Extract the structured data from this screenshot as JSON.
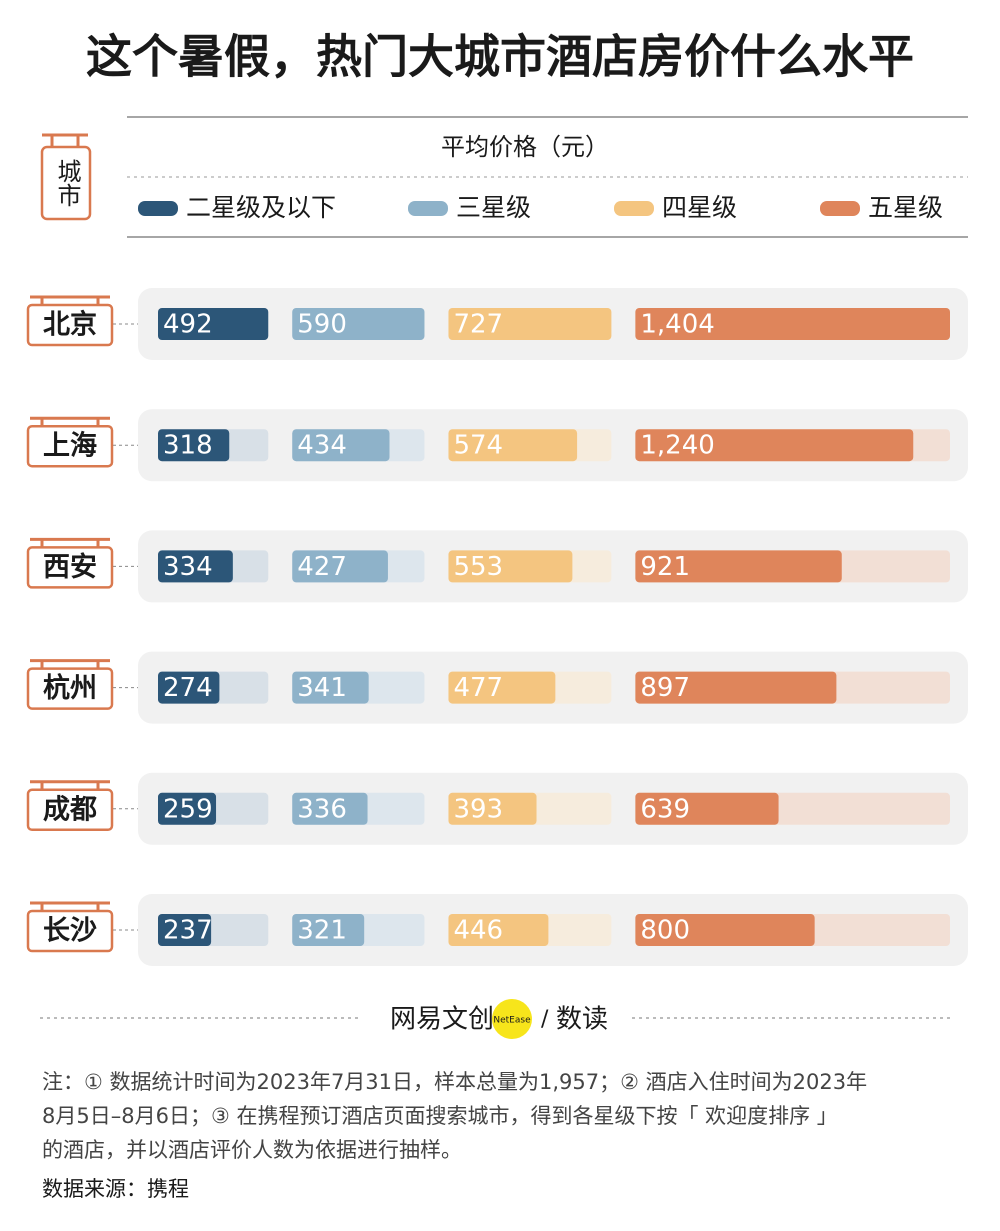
{
  "chart_data": {
    "type": "bar",
    "title": "这个暑假，热门大城市酒店房价什么水平",
    "category_label": "城市",
    "value_label": "平均价格（元）",
    "categories": [
      "北京",
      "上海",
      "西安",
      "杭州",
      "成都",
      "长沙"
    ],
    "series": [
      {
        "name": "二星级及以下",
        "color": "#2c5678",
        "track_color": "#d8e0e7",
        "values": [
          492,
          318,
          334,
          274,
          259,
          237
        ]
      },
      {
        "name": "三星级",
        "color": "#8eb2c9",
        "track_color": "#dde6ed",
        "values": [
          590,
          434,
          427,
          341,
          336,
          321
        ]
      },
      {
        "name": "四星级",
        "color": "#f4c580",
        "track_color": "#f6ecdd",
        "values": [
          727,
          574,
          553,
          477,
          393,
          446
        ]
      },
      {
        "name": "五星级",
        "color": "#df855b",
        "track_color": "#f2dfd5",
        "values": [
          1404,
          1240,
          921,
          897,
          639,
          800
        ],
        "value_labels": [
          "1,404",
          "1,240",
          "921",
          "897",
          "639",
          "800"
        ]
      }
    ]
  },
  "brand": {
    "name": "网易文创",
    "badge": "NetEase",
    "slash": "/",
    "column": "数读"
  },
  "notes": [
    "注：① 数据统计时间为2023年7月31日，样本总量为1,957；② 酒店入住时间为2023年",
    "8月5日–8月6日；③ 在携程预订酒店页面搜索城市，得到各星级下按「 欢迎度排序 」",
    "的酒店，并以酒店评价人数为依据进行抽样。"
  ],
  "source": "数据来源：携程"
}
